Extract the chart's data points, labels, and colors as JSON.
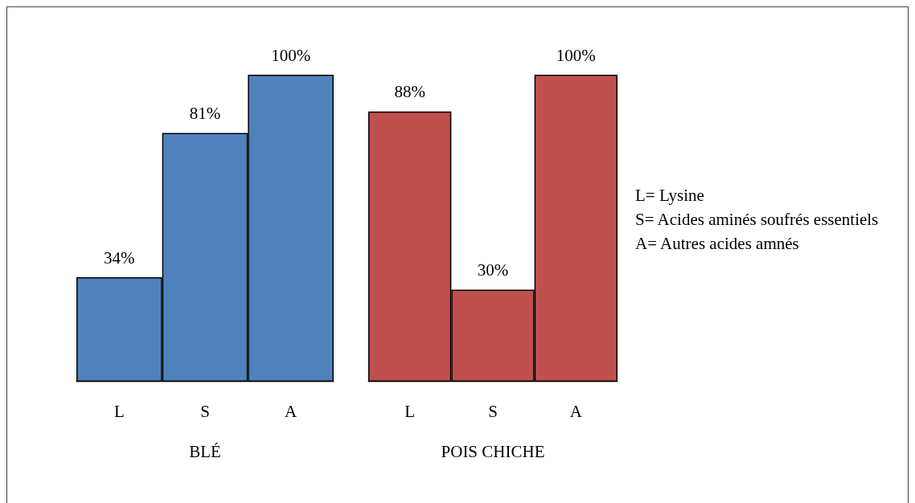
{
  "chart_data": [
    {
      "type": "bar",
      "xlabel": "BLÉ",
      "categories": [
        "L",
        "S",
        "A"
      ],
      "values": [
        34,
        81,
        100
      ],
      "value_labels": [
        "34%",
        "81%",
        "100%"
      ],
      "color": "#4f81bd"
    },
    {
      "type": "bar",
      "xlabel": "POIS CHICHE",
      "categories": [
        "L",
        "S",
        "A"
      ],
      "values": [
        88,
        30,
        100
      ],
      "value_labels": [
        "88%",
        "30%",
        "100%"
      ],
      "color": "#c0504d",
      "annotations": [
        "L= Lysine",
        "S= Acides aminés soufrés essentiels",
        "A= Autres acides amnés"
      ]
    }
  ]
}
